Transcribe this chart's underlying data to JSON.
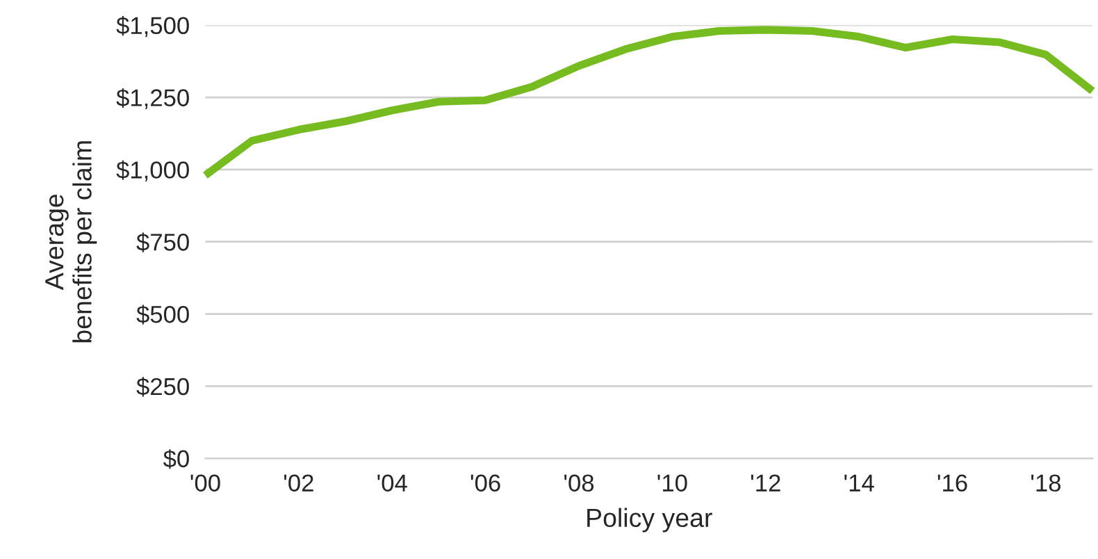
{
  "chart_data": {
    "type": "line",
    "xlabel": "Policy year",
    "ylabel": "Average\nbenefits per claim",
    "categories": [
      "'00",
      null,
      "'02",
      null,
      "'04",
      null,
      "'06",
      null,
      "'08",
      null,
      "'10",
      null,
      "'12",
      null,
      "'14",
      null,
      "'16",
      null,
      "'18",
      null
    ],
    "series": [
      {
        "color": "#76bc21",
        "values": [
          980,
          1100,
          1138,
          1167,
          1205,
          1235,
          1240,
          1287,
          1359,
          1417,
          1460,
          1480,
          1484,
          1480,
          1460,
          1422,
          1451,
          1441,
          1398,
          1272
        ]
      }
    ],
    "ylim": [
      0,
      1500
    ],
    "yticks": [
      {
        "value": 0,
        "label": "$0"
      },
      {
        "value": 250,
        "label": "$250"
      },
      {
        "value": 500,
        "label": "$500"
      },
      {
        "value": 750,
        "label": "$750"
      },
      {
        "value": 1000,
        "label": "$1,000"
      },
      {
        "value": 1250,
        "label": "$1,250"
      },
      {
        "value": 1500,
        "label": "$1,500"
      }
    ],
    "grid": "y",
    "marker": "none",
    "line_style": "solid"
  }
}
